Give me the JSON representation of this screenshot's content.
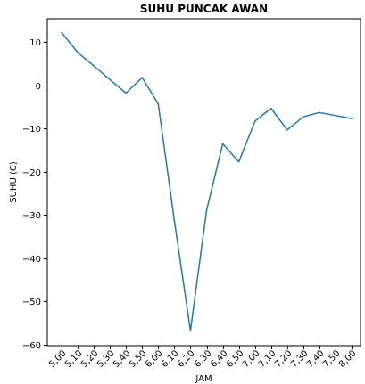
{
  "chart_data": {
    "type": "line",
    "title": "SUHU PUNCAK AWAN",
    "xlabel": "JAM",
    "ylabel": "SUHU (C)",
    "categories": [
      "5,00",
      "5,10",
      "5,20",
      "5,30",
      "5,40",
      "5,50",
      "6,00",
      "6,10",
      "6,20",
      "6,30",
      "6,40",
      "6,50",
      "7,00",
      "7,10",
      "7,20",
      "7,30",
      "7,40",
      "7,50",
      "8,00"
    ],
    "series": [
      {
        "values": [
          12.2,
          7.6,
          4.5,
          1.3,
          -1.8,
          1.8,
          -4.3,
          -31.3,
          -56.7,
          -28.9,
          -13.5,
          -17.7,
          -8.3,
          -5.3,
          -10.3,
          -7.3,
          -6.3,
          -7.0,
          -7.7
        ]
      }
    ],
    "ylim": [
      -60.2,
      15.4
    ],
    "yticks": [
      10,
      0,
      -10,
      -20,
      -30,
      -40,
      -50,
      -60
    ],
    "ytick_labels": [
      "10",
      "0",
      "−10",
      "−20",
      "−30",
      "−40",
      "−50",
      "−60"
    ],
    "grid": false,
    "legend": "none",
    "colors": {
      "line": "#1f77b4",
      "axes": "#000000"
    }
  }
}
